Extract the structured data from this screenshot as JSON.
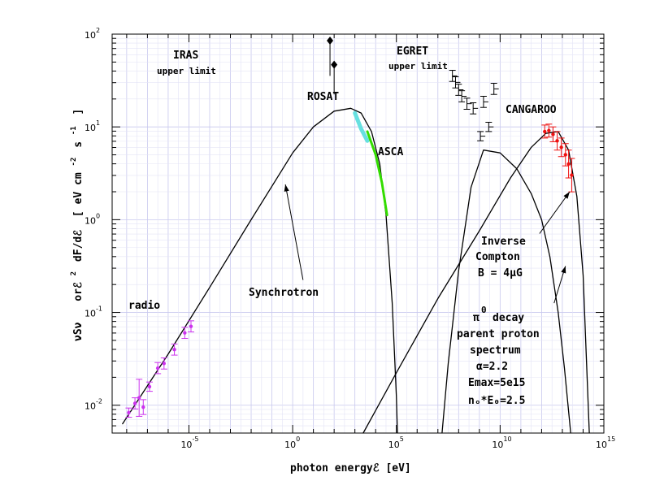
{
  "chart_data": {
    "type": "line",
    "xlabel": "photon energyℰ [eV]",
    "ylabel": "νSν  orℰ² dF/dℰ [ eV cm⁻² s⁻¹]",
    "ylabel_parts": {
      "nu": "νSν",
      "or": "orℰ",
      "sq": "2",
      "dfde": "dF/dℰ",
      "units": "[ eV cm",
      "m2": "-2",
      "s": "s",
      "m1": "-1",
      "close": "]"
    },
    "xlim_log10": [
      -8.7,
      15
    ],
    "ylim_log10": [
      -2.3,
      2
    ],
    "x_ticks": [
      {
        "base": "10",
        "exp": "-5",
        "v": -5
      },
      {
        "base": "10",
        "exp": "0",
        "v": 0
      },
      {
        "base": "10",
        "exp": "5",
        "v": 5
      },
      {
        "base": "10",
        "exp": "10",
        "v": 10
      },
      {
        "base": "10",
        "exp": "15",
        "v": 15
      }
    ],
    "y_ticks": [
      {
        "base": "10",
        "exp": "2",
        "v": 2
      },
      {
        "base": "10",
        "exp": "1",
        "v": 1
      },
      {
        "base": "10",
        "exp": "0",
        "v": 0
      },
      {
        "base": "10",
        "exp": "-1",
        "v": -1
      },
      {
        "base": "10",
        "exp": "-2",
        "v": -2
      }
    ],
    "series": [
      {
        "name": "Synchrotron",
        "color": "#000000",
        "x": [
          -8.2,
          -6,
          -4,
          -2,
          0,
          1,
          2,
          2.8,
          3.3,
          3.8,
          4.2,
          4.5,
          4.8,
          5.0,
          5.05
        ],
        "y": [
          -2.2,
          -1.45,
          -0.73,
          0.0,
          0.72,
          1.0,
          1.17,
          1.2,
          1.15,
          0.95,
          0.6,
          0.05,
          -0.9,
          -1.9,
          -2.3
        ]
      },
      {
        "name": "Inverse Compton",
        "color": "#000000",
        "x": [
          7.2,
          7.5,
          8,
          8.6,
          9.2,
          10,
          10.8,
          11.5,
          12,
          12.4,
          12.8,
          13.1,
          13.4
        ],
        "y": [
          -2.3,
          -1.55,
          -0.55,
          0.35,
          0.75,
          0.72,
          0.55,
          0.28,
          0.0,
          -0.4,
          -1.0,
          -1.6,
          -2.3
        ]
      },
      {
        "name": "π⁰ decay",
        "color": "#000000",
        "x": [
          3.4,
          5,
          7,
          9,
          10.5,
          11.5,
          12.2,
          12.8,
          13.3,
          13.7,
          14,
          14.3
        ],
        "y": [
          -2.3,
          -1.65,
          -0.85,
          -0.12,
          0.45,
          0.78,
          0.93,
          0.95,
          0.75,
          0.25,
          -0.6,
          -2.3
        ]
      },
      {
        "name": "ROSAT",
        "color": "#66e0e0",
        "width": 5,
        "x": [
          3.0,
          3.3,
          3.6
        ],
        "y": [
          1.15,
          0.98,
          0.85
        ]
      },
      {
        "name": "ASCA",
        "color": "#33dd00",
        "width": 3,
        "x": [
          3.6,
          4.0,
          4.3,
          4.55
        ],
        "y": [
          0.95,
          0.7,
          0.4,
          0.05
        ]
      }
    ],
    "points": [
      {
        "group": "radio",
        "color": "#cc33ee",
        "x": -7.9,
        "y": -2.08,
        "err": 0.05
      },
      {
        "group": "radio",
        "color": "#cc33ee",
        "x": -7.6,
        "y": -1.98,
        "err": 0.06
      },
      {
        "group": "radio",
        "color": "#cc33ee",
        "x": -7.4,
        "y": -1.92,
        "err": 0.2
      },
      {
        "group": "radio",
        "color": "#cc33ee",
        "x": -7.2,
        "y": -2.02,
        "err": 0.08
      },
      {
        "group": "radio",
        "color": "#cc33ee",
        "x": -6.9,
        "y": -1.8,
        "err": 0.05
      },
      {
        "group": "radio",
        "color": "#cc33ee",
        "x": -6.5,
        "y": -1.6,
        "err": 0.06
      },
      {
        "group": "radio",
        "color": "#cc33ee",
        "x": -6.2,
        "y": -1.55,
        "err": 0.06
      },
      {
        "group": "radio",
        "color": "#cc33ee",
        "x": -5.7,
        "y": -1.4,
        "err": 0.06
      },
      {
        "group": "radio",
        "color": "#cc33ee",
        "x": -5.2,
        "y": -1.22,
        "err": 0.06
      },
      {
        "group": "radio",
        "color": "#cc33ee",
        "x": -4.9,
        "y": -1.15,
        "err": 0.06
      },
      {
        "group": "IRAS",
        "color": "#000000",
        "x": 1.8,
        "y": 1.93,
        "lower": 1.55
      },
      {
        "group": "IRAS",
        "color": "#000000",
        "x": 2.0,
        "y": 1.67,
        "lower": 1.35
      },
      {
        "group": "EGRET",
        "color": "#000000",
        "x": 7.7,
        "y": 1.55,
        "err": 0.06
      },
      {
        "group": "EGRET",
        "color": "#000000",
        "x": 7.85,
        "y": 1.48,
        "err": 0.06
      },
      {
        "group": "EGRET",
        "color": "#000000",
        "x": 8.0,
        "y": 1.4,
        "err": 0.06
      },
      {
        "group": "EGRET",
        "color": "#000000",
        "x": 8.15,
        "y": 1.33,
        "err": 0.06
      },
      {
        "group": "EGRET",
        "color": "#000000",
        "x": 8.4,
        "y": 1.25,
        "err": 0.06
      },
      {
        "group": "EGRET",
        "color": "#000000",
        "x": 8.7,
        "y": 1.2,
        "err": 0.06
      },
      {
        "group": "EGRET",
        "color": "#000000",
        "x": 9.2,
        "y": 1.27,
        "err": 0.06
      },
      {
        "group": "EGRET",
        "color": "#000000",
        "x": 9.7,
        "y": 1.41,
        "err": 0.06
      },
      {
        "group": "EGRET",
        "color": "#000000",
        "x": 9.05,
        "y": 0.9,
        "err": 0.05
      },
      {
        "group": "EGRET",
        "color": "#000000",
        "x": 9.45,
        "y": 1.0,
        "err": 0.05
      },
      {
        "group": "CANGAROO",
        "color": "#ee1111",
        "x": 12.15,
        "y": 0.95,
        "err": 0.07
      },
      {
        "group": "CANGAROO",
        "color": "#ee1111",
        "x": 12.35,
        "y": 0.96,
        "err": 0.07
      },
      {
        "group": "CANGAROO",
        "color": "#ee1111",
        "x": 12.55,
        "y": 0.92,
        "err": 0.08
      },
      {
        "group": "CANGAROO",
        "color": "#ee1111",
        "x": 12.75,
        "y": 0.85,
        "err": 0.1
      },
      {
        "group": "CANGAROO",
        "color": "#ee1111",
        "x": 12.95,
        "y": 0.78,
        "err": 0.1
      },
      {
        "group": "CANGAROO",
        "color": "#ee1111",
        "x": 13.15,
        "y": 0.7,
        "err": 0.12
      },
      {
        "group": "CANGAROO",
        "color": "#ee1111",
        "x": 13.3,
        "y": 0.6,
        "err": 0.15
      },
      {
        "group": "CANGAROO",
        "color": "#ee1111",
        "x": 13.45,
        "y": 0.48,
        "err": 0.18
      }
    ],
    "arrows": [
      {
        "name": "synchrotron-arrow",
        "from": [
          0.5,
          -0.65
        ],
        "to": [
          -0.35,
          0.38
        ]
      },
      {
        "name": "ic-arrow",
        "from": [
          11.9,
          -0.15
        ],
        "to": [
          13.35,
          0.3
        ]
      },
      {
        "name": "pi0-arrow",
        "from": [
          12.6,
          -0.9
        ],
        "to": [
          13.15,
          -0.5
        ]
      }
    ],
    "annotations": {
      "iras": "IRAS",
      "iras_sub": "upper limit",
      "egret": "EGRET",
      "egret_sub": "upper limit",
      "rosat": "ROSAT",
      "asca": "ASCA",
      "cangaroo": "CANGAROO",
      "radio": "radio",
      "synchrotron": "Synchrotron",
      "ic_1": "Inverse",
      "ic_2": "Compton",
      "ic_3": "B = 4μG",
      "pi_1": "π",
      "pi_sup": "0",
      "pi_2": "decay",
      "pi_3": "parent proton",
      "pi_4": "spectrum",
      "alpha": "α=2.2",
      "emax": "Emax=5e15",
      "no": "nₒ*E₀=2.5"
    }
  }
}
